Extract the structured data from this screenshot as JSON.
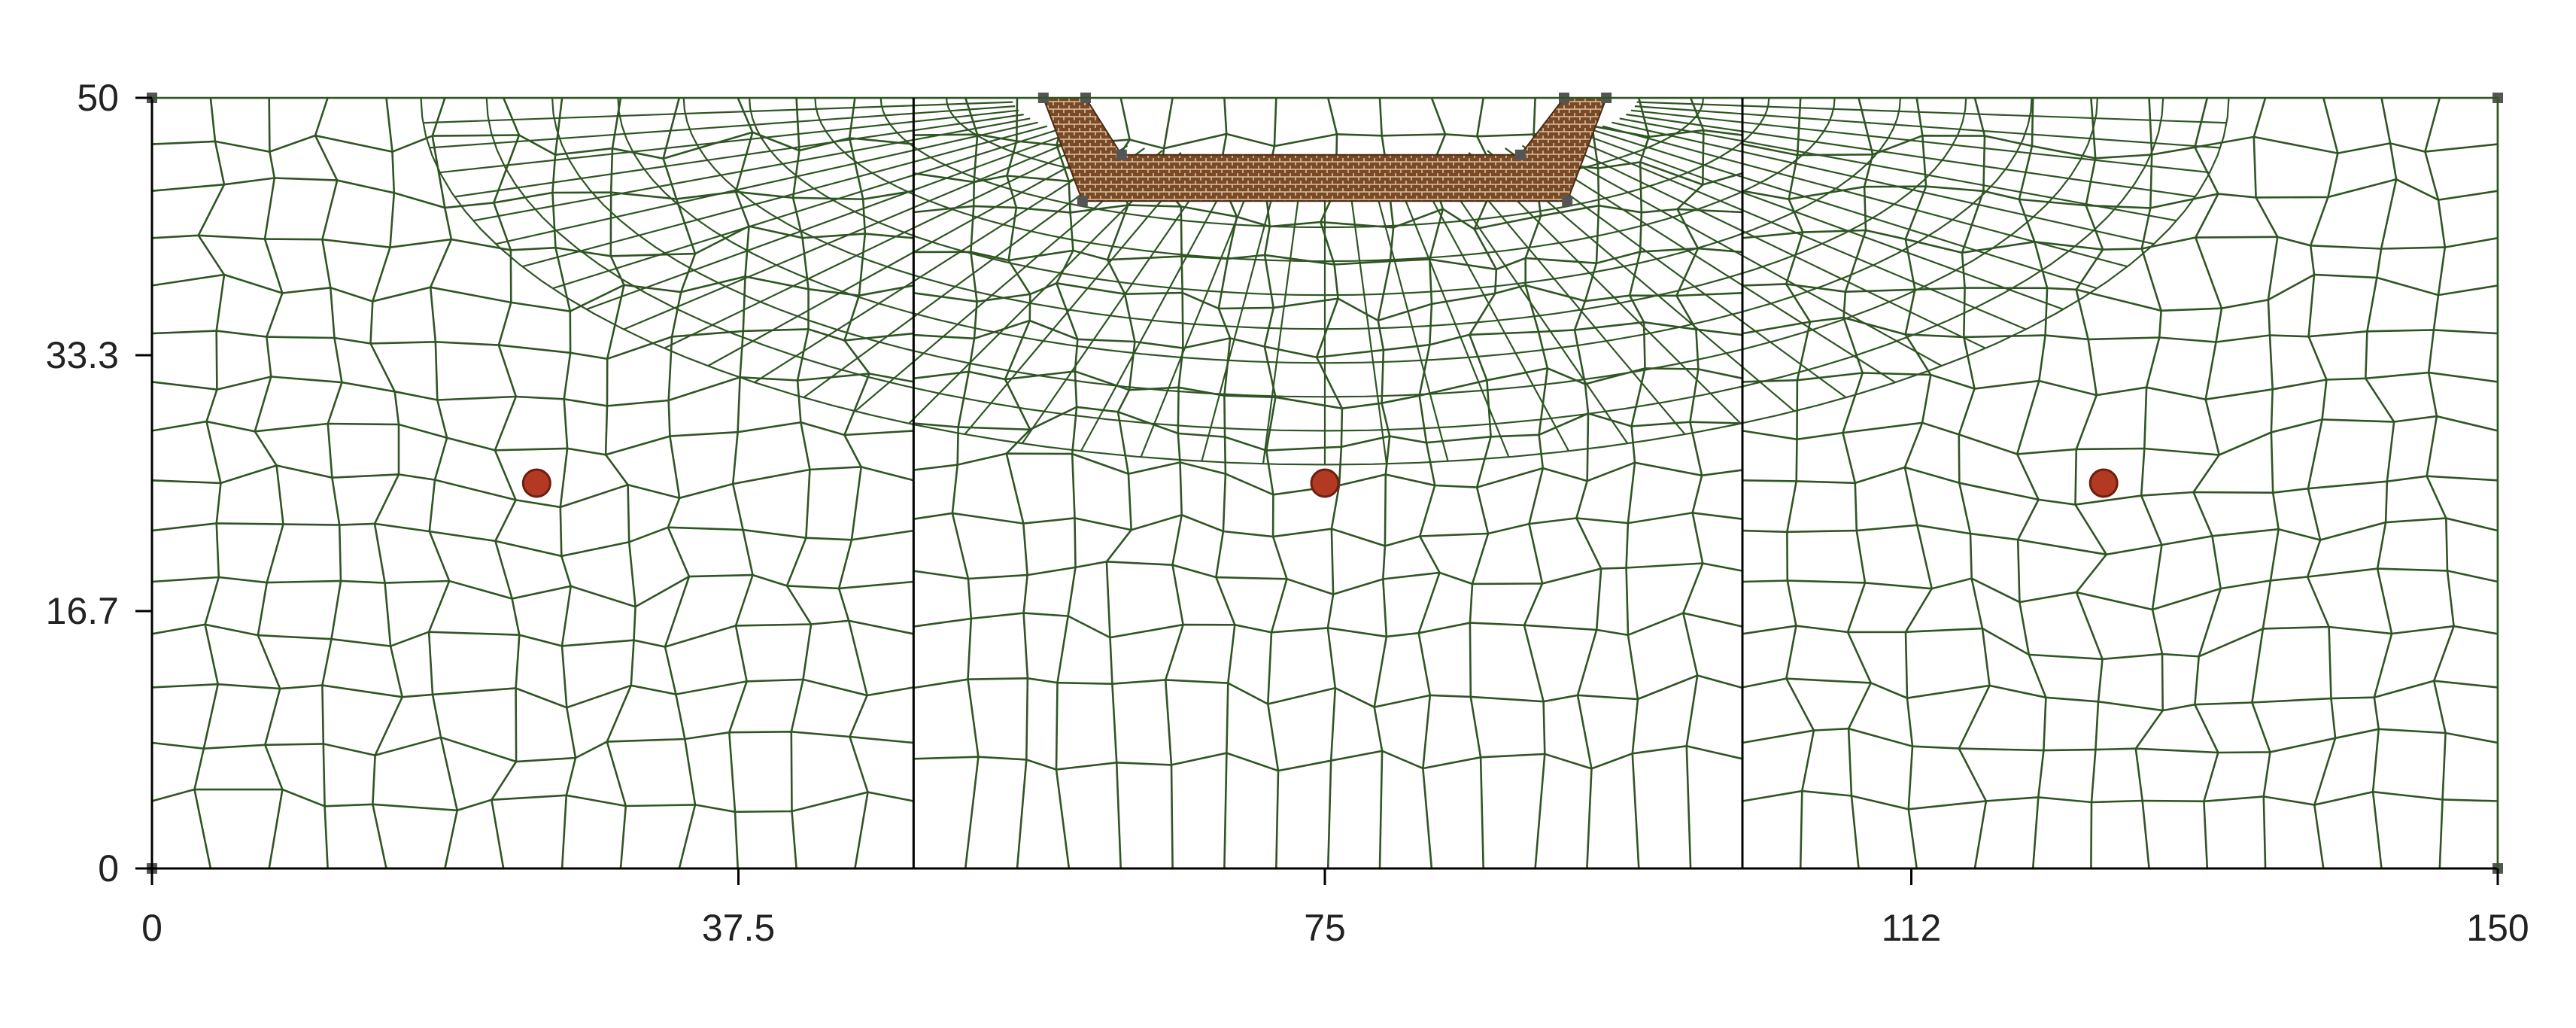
{
  "chart_data": {
    "type": "finite-element-mesh",
    "x_ticks": [
      "0",
      "37.5",
      "75",
      "112",
      "150"
    ],
    "y_ticks": [
      "0",
      "16.7",
      "33.3",
      "50"
    ],
    "x_tick_values": [
      0,
      37.5,
      75,
      112.5,
      150
    ],
    "y_tick_values": [
      0,
      16.7,
      33.3,
      50
    ],
    "xlim": [
      0,
      150
    ],
    "ylim": [
      0,
      50
    ],
    "grid": false,
    "region_dividers_x": [
      48.7,
      101.7
    ],
    "trench": {
      "top_y": 50,
      "ledge_y": 46.3,
      "bottom_y": 43.3,
      "outer_x": [
        57,
        93
      ],
      "inner_x": [
        59.5,
        90.5
      ],
      "ledge_inner_x": [
        62,
        87.5
      ],
      "bottom_x": [
        59.5,
        90.5
      ]
    },
    "points": [
      {
        "x": 24.6,
        "y": 25
      },
      {
        "x": 75,
        "y": 25
      },
      {
        "x": 124.8,
        "y": 25
      }
    ],
    "colors": {
      "mesh_line": "#2f5523",
      "fill_material": "#7a4a26",
      "fill_material_light": "#c9a884",
      "point": "#b23a22",
      "point_stroke": "#6e1e10",
      "axis": "#000000",
      "vertex_marker": "#555555"
    }
  }
}
